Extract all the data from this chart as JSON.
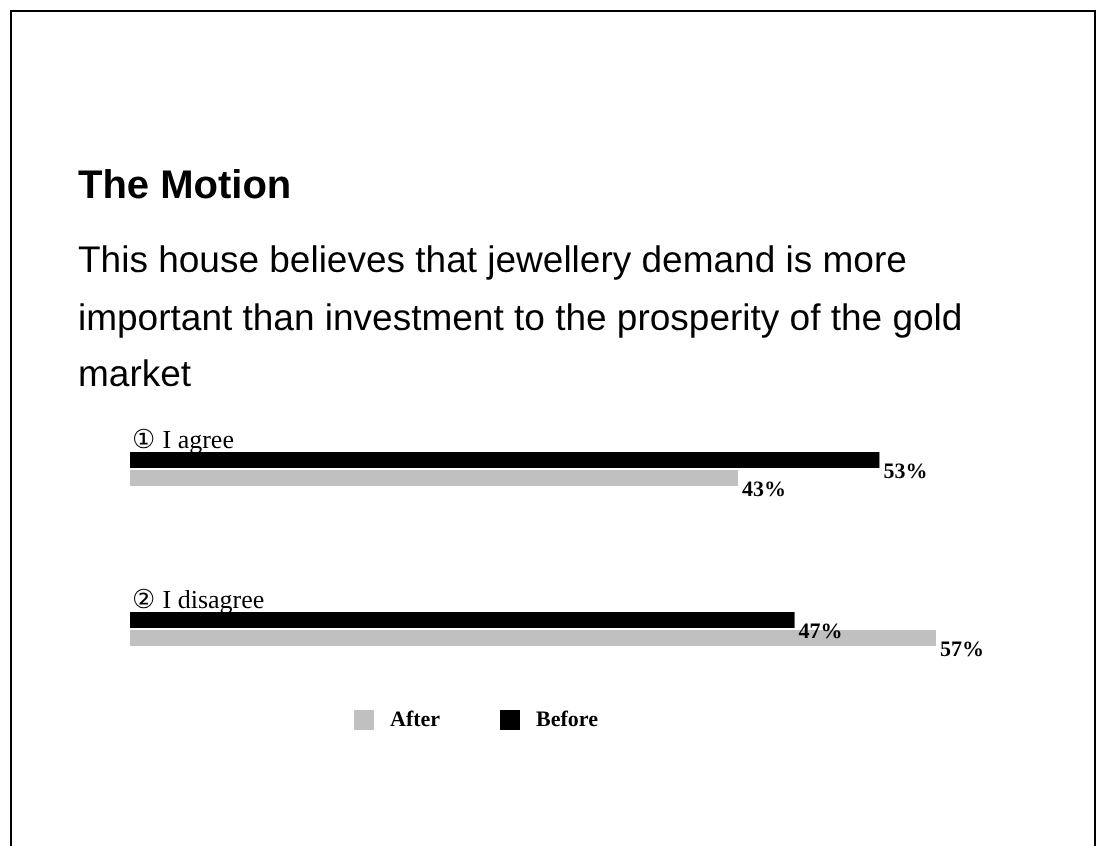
{
  "chart_data": {
    "type": "bar",
    "orientation": "horizontal",
    "title": "The Motion",
    "subtitle": "This house believes that jewellery demand is more important than investment to the prosperity of the gold market",
    "categories": [
      "① I agree",
      "② I disagree"
    ],
    "series": [
      {
        "name": "Before",
        "color": "#000000",
        "values": [
          53,
          47
        ],
        "value_labels": [
          "53%",
          "47%"
        ]
      },
      {
        "name": "After",
        "color": "#c0c0c0",
        "values": [
          43,
          57
        ],
        "value_labels": [
          "43%",
          "57%"
        ]
      }
    ],
    "legend": "bottom",
    "grid": false,
    "tick_labels": false
  }
}
